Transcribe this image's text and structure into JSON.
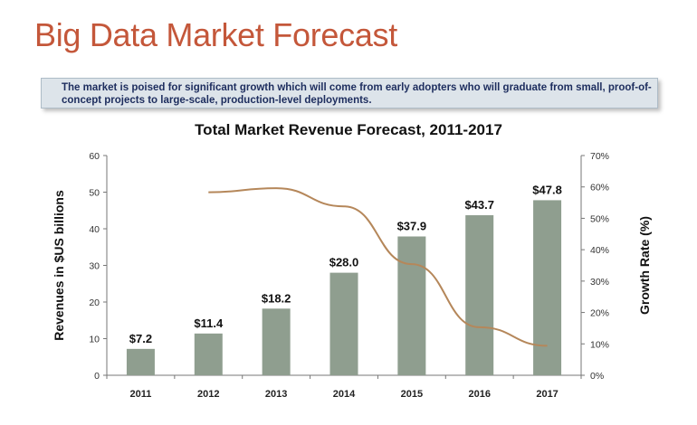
{
  "slide": {
    "title": "Big Data Market Forecast",
    "callout": "The market is poised for significant growth which will come from early adopters who will graduate from small, proof-of-concept projects to large-scale, production-level deployments."
  },
  "colors": {
    "title": "#c4573a",
    "bar": "#8f9e8f",
    "line": "#b5875a",
    "callout_bg": "#dde4ea",
    "callout_text": "#1d2d5e"
  },
  "chart_data": {
    "type": "bar",
    "title": "Total Market Revenue Forecast, 2011-2017",
    "ylabel": "Revenues in $US billions",
    "y2label": "Growth Rate (%)",
    "categories": [
      "2011",
      "2012",
      "2013",
      "2014",
      "2015",
      "2016",
      "2017"
    ],
    "ylim": [
      0,
      60
    ],
    "yticks": [
      0,
      10,
      20,
      30,
      40,
      50,
      60
    ],
    "y2lim": [
      0,
      70
    ],
    "y2ticks": [
      "0%",
      "10%",
      "20%",
      "30%",
      "40%",
      "50%",
      "60%",
      "70%"
    ],
    "grid": false,
    "series": [
      {
        "type": "bar",
        "axis": "left",
        "values": [
          7.2,
          11.4,
          18.2,
          28.0,
          37.9,
          43.7,
          47.8
        ],
        "labels": [
          "$7.2",
          "$11.4",
          "$18.2",
          "$28.0",
          "$37.9",
          "$43.7",
          "$47.8"
        ]
      },
      {
        "type": "line",
        "axis": "right",
        "values": [
          null,
          58.3,
          59.6,
          53.8,
          35.4,
          15.3,
          9.4
        ]
      }
    ]
  }
}
